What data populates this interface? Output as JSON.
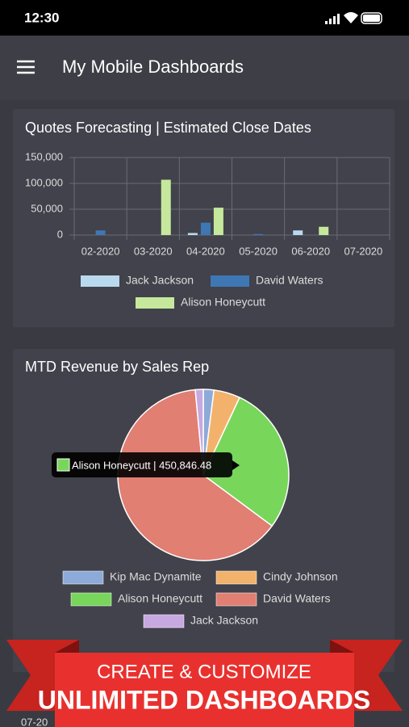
{
  "status_bar": {
    "time": "12:30"
  },
  "header": {
    "title": "My Mobile Dashboards"
  },
  "chart_data": [
    {
      "type": "bar",
      "title": "Quotes Forecasting | Estimated Close Dates",
      "categories": [
        "02-2020",
        "03-2020",
        "04-2020",
        "05-2020",
        "06-2020",
        "07-2020"
      ],
      "series": [
        {
          "name": "Jack Jackson",
          "color": "#b9d9ee",
          "values": [
            0,
            0,
            4000,
            0,
            9000,
            0
          ]
        },
        {
          "name": "David Waters",
          "color": "#3f77b4",
          "values": [
            9000,
            0,
            24000,
            2000,
            0,
            0
          ]
        },
        {
          "name": "Alison Honeycutt",
          "color": "#c6e89c",
          "values": [
            0,
            107000,
            53000,
            0,
            16000,
            0
          ]
        }
      ],
      "ylim": [
        0,
        150000
      ],
      "yticks": [
        0,
        {
          "value": 50000,
          "label": "50,000"
        },
        {
          "value": 100000,
          "label": "100,000"
        },
        {
          "value": 150000,
          "label": "150,000"
        }
      ],
      "grid": true
    },
    {
      "type": "pie",
      "title": "MTD Revenue by Sales Rep",
      "categories": [
        "Kip Mac Dynamite",
        "Cindy Johnson",
        "Alison Honeycutt",
        "David Waters",
        "Jack Jackson"
      ],
      "colors": [
        "#8eaad8",
        "#f2b26c",
        "#78d65b",
        "#e07f72",
        "#c8a8e0"
      ],
      "values": [
        32000,
        80000,
        450846.48,
        1015000,
        24000
      ],
      "value_labels": [
        null,
        null,
        "Alison Honeycutt | 450,846.48",
        null,
        null
      ]
    }
  ],
  "banner": {
    "line1": "CREATE & CUSTOMIZE",
    "line2": "UNLIMITED DASHBOARDS"
  },
  "footer_text": "07-20"
}
